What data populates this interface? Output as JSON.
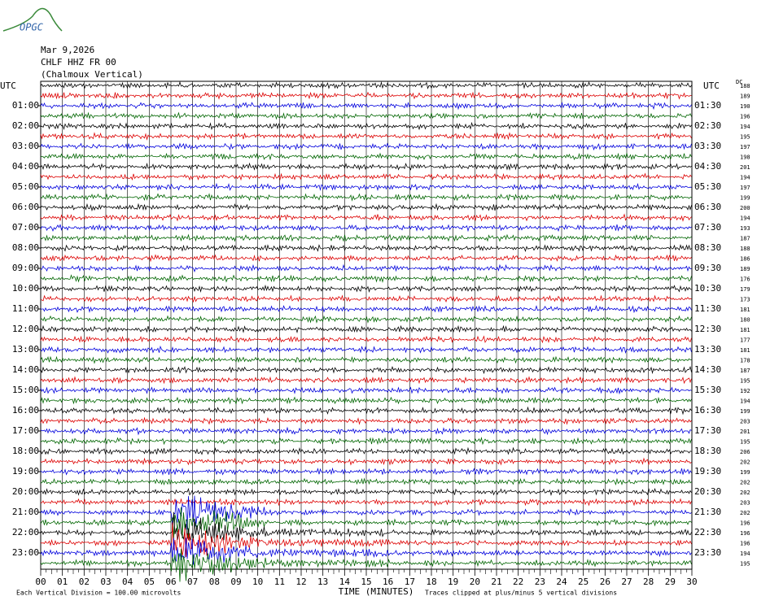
{
  "header": {
    "logo": "OPGC",
    "date": "Mar 9,2026",
    "station": "CHLF HHZ FR 00",
    "location": "(Chalmoux Vertical)"
  },
  "left_axis": {
    "title": "UTC",
    "labels": [
      "01:00",
      "02:00",
      "03:00",
      "04:00",
      "05:00",
      "06:00",
      "07:00",
      "08:00",
      "09:00",
      "10:00",
      "11:00",
      "12:00",
      "13:00",
      "14:00",
      "15:00",
      "16:00",
      "17:00",
      "18:00",
      "19:00",
      "20:00",
      "21:00",
      "22:00",
      "23:00"
    ]
  },
  "right_axis": {
    "title": "UTC",
    "labels": [
      "01:30",
      "02:30",
      "03:30",
      "04:30",
      "05:30",
      "06:30",
      "07:30",
      "08:30",
      "09:30",
      "10:30",
      "11:30",
      "12:30",
      "13:30",
      "14:30",
      "15:30",
      "16:30",
      "17:30",
      "18:30",
      "19:30",
      "20:30",
      "21:30",
      "22:30",
      "23:30"
    ]
  },
  "offsets": {
    "title": "DC",
    "values": [
      188,
      189,
      190,
      196,
      194,
      195,
      197,
      198,
      201,
      194,
      197,
      199,
      200,
      194,
      193,
      187,
      188,
      186,
      189,
      176,
      179,
      173,
      181,
      180,
      181,
      177,
      181,
      178,
      187,
      195,
      192,
      194,
      199,
      203,
      201,
      195,
      206,
      202,
      199,
      202,
      202,
      203,
      202,
      196,
      196,
      196,
      194,
      195
    ]
  },
  "x_axis": {
    "title": "TIME (MINUTES)",
    "ticks": [
      "00",
      "01",
      "02",
      "03",
      "04",
      "05",
      "06",
      "07",
      "08",
      "09",
      "10",
      "11",
      "12",
      "13",
      "14",
      "15",
      "16",
      "17",
      "18",
      "19",
      "20",
      "21",
      "22",
      "23",
      "24",
      "25",
      "26",
      "27",
      "28",
      "29",
      "30"
    ]
  },
  "footer": {
    "scale": "Each Vertical Division =  100.00 microvolts",
    "clip": "Traces clipped at plus/minus 5 vertical divisions"
  },
  "trace_colors": [
    "#000000",
    "#dd0000",
    "#0000dd",
    "#006600"
  ]
}
